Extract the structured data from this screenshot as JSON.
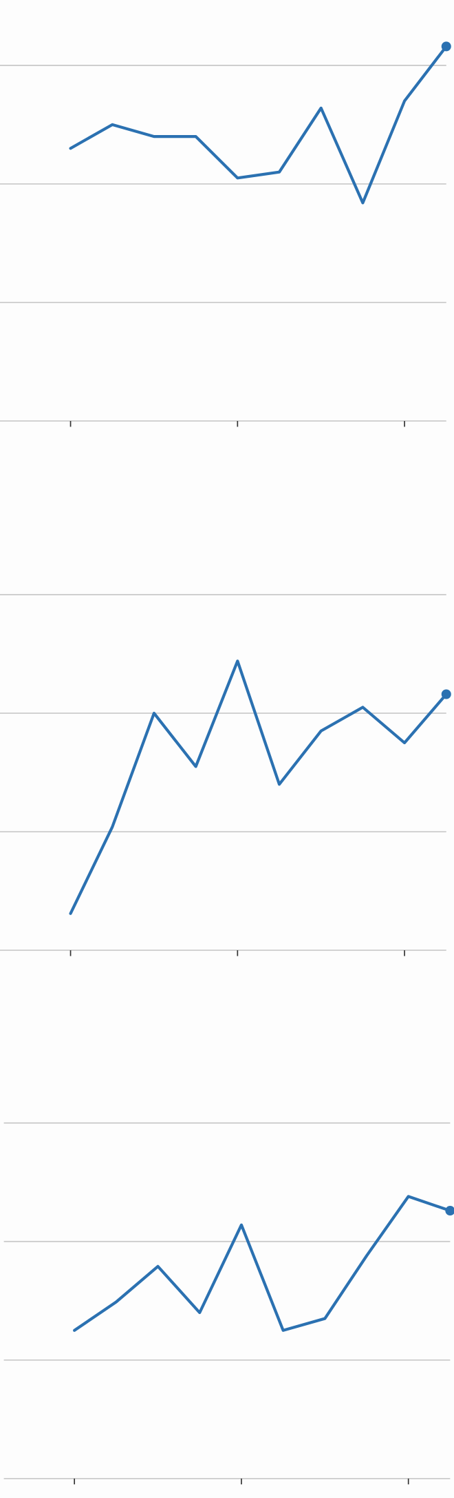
{
  "chart_data": [
    {
      "type": "line",
      "color": "#2b71b1",
      "grid": true,
      "x": [
        0,
        1,
        2,
        3,
        4,
        5,
        6,
        7,
        8,
        9
      ],
      "values": [
        2.3,
        2.5,
        2.4,
        2.4,
        2.05,
        2.1,
        2.64,
        1.84,
        2.7,
        3.16
      ],
      "xlim": [
        -1.69,
        9.0
      ],
      "ylim": [
        0,
        3.2
      ],
      "xticks": [
        0,
        4,
        8
      ],
      "yticks": [
        0,
        1,
        2,
        3
      ]
    },
    {
      "type": "line",
      "color": "#2b71b1",
      "grid": true,
      "x": [
        0,
        1,
        2,
        3,
        4,
        5,
        6,
        7,
        8,
        9
      ],
      "values": [
        0.31,
        1.04,
        2.0,
        1.55,
        2.44,
        1.4,
        1.85,
        2.05,
        1.75,
        2.16
      ],
      "xlim": [
        -1.69,
        9.0
      ],
      "ylim": [
        0,
        3.2
      ],
      "xticks": [
        0,
        4,
        8
      ],
      "yticks": [
        0,
        1,
        2,
        3
      ]
    },
    {
      "type": "line",
      "color": "#2b71b1",
      "grid": true,
      "x": [
        0,
        1,
        2,
        3,
        4,
        5,
        6,
        7,
        8,
        9
      ],
      "values": [
        1.25,
        1.49,
        1.79,
        1.4,
        2.14,
        1.25,
        1.35,
        1.88,
        2.38,
        2.26
      ],
      "xlim": [
        -1.69,
        9.0
      ],
      "ylim": [
        0,
        3.2
      ],
      "xticks": [
        0,
        4,
        8
      ],
      "yticks": [
        0,
        1,
        2,
        3
      ]
    }
  ]
}
